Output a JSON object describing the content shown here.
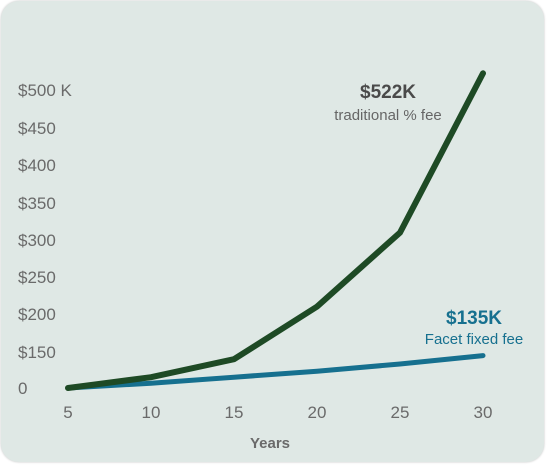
{
  "chart_data": {
    "type": "line",
    "xlabel": "Years",
    "ylabel": "",
    "title": "",
    "grid": false,
    "xlim": [
      5,
      31
    ],
    "x_ticks": [
      "5",
      "10",
      "15",
      "20",
      "25",
      "30"
    ],
    "y_ticks": [
      "0",
      "$150",
      "$200",
      "$250",
      "$300",
      "$350",
      "$400",
      "$450",
      "$500 K"
    ],
    "series": [
      {
        "color": "#1e4a25",
        "x": [
          5,
          10,
          15,
          20,
          25,
          30
        ],
        "y": [
          0,
          45,
          120,
          210,
          310,
          522
        ]
      },
      {
        "color": "#16708f",
        "x": [
          5,
          10,
          15,
          20,
          25,
          30
        ],
        "y": [
          0,
          20,
          45,
          70,
          100,
          135
        ]
      }
    ],
    "annotations": [
      {
        "value": "$522K",
        "label": "traditional % fee",
        "color": "#4a4a4a",
        "label_color": "#666666"
      },
      {
        "value": "$135K",
        "label": "Facet fixed fee",
        "color": "#16708f",
        "label_color": "#16708f"
      }
    ]
  }
}
